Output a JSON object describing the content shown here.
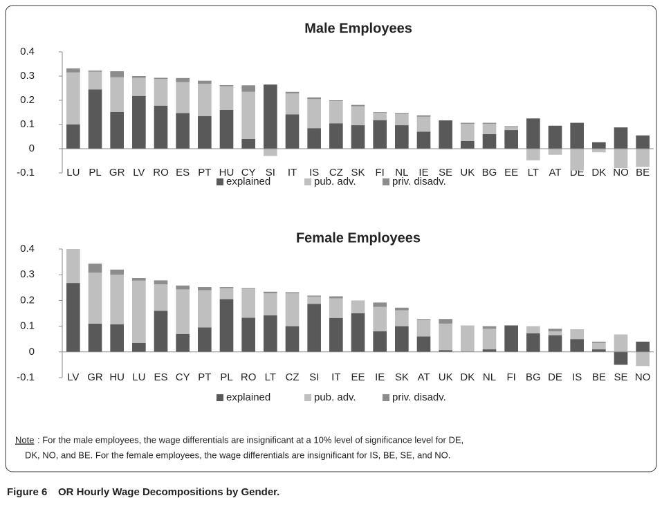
{
  "chart_data": [
    {
      "type": "bar",
      "stacked": true,
      "title": "Male Employees",
      "categories": [
        "LU",
        "PL",
        "GR",
        "LV",
        "RO",
        "ES",
        "PT",
        "HU",
        "CY",
        "SI",
        "IT",
        "IS",
        "CZ",
        "SK",
        "FI",
        "NL",
        "IE",
        "SE",
        "UK",
        "BG",
        "EE",
        "LT",
        "AT",
        "DE",
        "DK",
        "NO",
        "BE"
      ],
      "series": [
        {
          "name": "explained",
          "color": "#595959",
          "values": [
            0.1,
            0.245,
            0.152,
            0.218,
            0.178,
            0.147,
            0.135,
            0.16,
            0.04,
            0.265,
            0.142,
            0.085,
            0.105,
            0.097,
            0.118,
            0.097,
            0.07,
            0.117,
            0.032,
            0.06,
            0.077,
            0.125,
            0.095,
            0.107,
            0.027,
            0.088,
            0.055
          ]
        },
        {
          "name": "pub. adv.",
          "color": "#bfbfbf",
          "values": [
            0.215,
            0.073,
            0.143,
            0.075,
            0.11,
            0.128,
            0.133,
            0.098,
            0.195,
            -0.03,
            0.086,
            0.12,
            0.092,
            0.078,
            0.03,
            0.046,
            0.062,
            -0.003,
            0.071,
            0.043,
            0.013,
            -0.048,
            -0.025,
            -0.09,
            -0.015,
            -0.08,
            -0.075
          ]
        },
        {
          "name": "priv. disadv.",
          "color": "#8c8c8c",
          "values": [
            0.017,
            0.005,
            0.025,
            0.007,
            0.005,
            0.017,
            0.013,
            0.005,
            0.027,
            0,
            0.007,
            0.007,
            0.003,
            0.006,
            0.003,
            0.004,
            0.006,
            0,
            0.004,
            0.004,
            0.003,
            0,
            0,
            0,
            0,
            0,
            0
          ]
        }
      ],
      "ylim": [
        -0.1,
        0.4
      ],
      "yticks": [
        0.4,
        0.3,
        0.2,
        0.1,
        0,
        -0.1
      ],
      "legend": "bottom"
    },
    {
      "type": "bar",
      "stacked": true,
      "title": "Female Employees",
      "categories": [
        "LV",
        "GR",
        "HU",
        "LU",
        "ES",
        "CY",
        "PT",
        "PL",
        "RO",
        "LT",
        "CZ",
        "SI",
        "IT",
        "EE",
        "IE",
        "SK",
        "AT",
        "UK",
        "DK",
        "NL",
        "FI",
        "BG",
        "DE",
        "IS",
        "BE",
        "SE",
        "NO"
      ],
      "series": [
        {
          "name": "explained",
          "color": "#595959",
          "values": [
            0.268,
            0.11,
            0.107,
            0.035,
            0.16,
            0.07,
            0.095,
            0.205,
            0.133,
            0.142,
            0.1,
            0.187,
            0.132,
            0.15,
            0.08,
            0.1,
            0.06,
            0.007,
            0,
            0.01,
            0.103,
            0.072,
            0.065,
            0.05,
            0.01,
            -0.05,
            0.04
          ]
        },
        {
          "name": "pub. adv.",
          "color": "#bfbfbf",
          "values": [
            0.132,
            0.198,
            0.193,
            0.242,
            0.103,
            0.173,
            0.145,
            0.043,
            0.112,
            0.086,
            0.128,
            0.028,
            0.076,
            0.05,
            0.095,
            0.062,
            0.065,
            0.103,
            0.103,
            0.08,
            0,
            0.028,
            0.015,
            0.035,
            0.025,
            0.068,
            -0.055
          ]
        },
        {
          "name": "priv. disadv.",
          "color": "#8c8c8c",
          "values": [
            0,
            0.035,
            0.02,
            0.01,
            0.015,
            0.015,
            0.012,
            0.004,
            0.003,
            0.006,
            0.004,
            0.004,
            0.008,
            0,
            0.017,
            0.01,
            0.003,
            0.018,
            0,
            0.01,
            0,
            0,
            0.01,
            0.002,
            0.005,
            0,
            0
          ]
        }
      ],
      "ylim": [
        -0.1,
        0.4
      ],
      "yticks": [
        0.4,
        0.3,
        0.2,
        0.1,
        0,
        -0.1
      ],
      "legend": "bottom"
    }
  ],
  "note": {
    "label": "Note",
    "lines": [
      ": For the male employees, the wage differentials are insignificant at a 10% level of significance level for DE,",
      "DK, NO, and BE. For the female employees, the wage differentials are insignificant for IS, BE, SE, and NO."
    ]
  },
  "caption": {
    "label": "Figure 6",
    "title": "OR Hourly Wage Decompositions by Gender."
  }
}
